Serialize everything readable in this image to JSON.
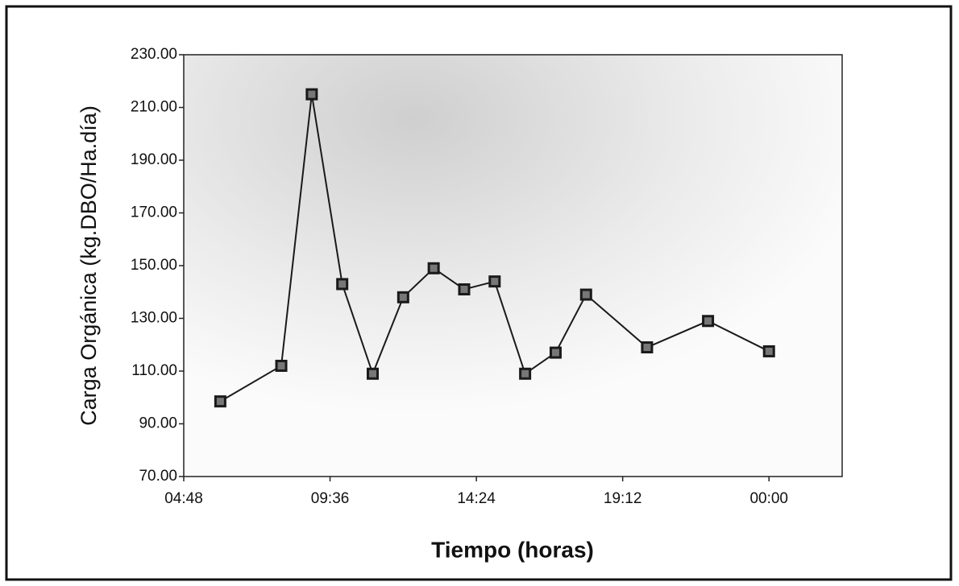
{
  "chart_data": {
    "type": "line",
    "x_label": "Tiempo (horas)",
    "y_label": "Carga Orgánica (kg.DBO/Ha.día)",
    "x": [
      6,
      8,
      9,
      10,
      11,
      12,
      13,
      14,
      15,
      16,
      17,
      18,
      20,
      22,
      24
    ],
    "values": [
      98.5,
      112,
      215,
      143,
      109,
      138,
      149,
      141,
      144,
      109,
      117,
      139,
      119,
      129,
      117.5
    ],
    "color": "#1a1a1a",
    "xlim": [
      4.8,
      26.4
    ],
    "xticks": [
      {
        "value": 4.8,
        "label": "04:48"
      },
      {
        "value": 9.6,
        "label": "09:36"
      },
      {
        "value": 14.4,
        "label": "14:24"
      },
      {
        "value": 19.2,
        "label": "19:12"
      },
      {
        "value": 24,
        "label": "00:00"
      }
    ],
    "ylim": [
      70,
      230
    ],
    "yticks": [
      {
        "value": 70,
        "label": "70.00"
      },
      {
        "value": 90,
        "label": "90.00"
      },
      {
        "value": 110,
        "label": "110.00"
      },
      {
        "value": 130,
        "label": "130.00"
      },
      {
        "value": 150,
        "label": "150.00"
      },
      {
        "value": 170,
        "label": "170.00"
      },
      {
        "value": 190,
        "label": "190.00"
      },
      {
        "value": 210,
        "label": "210.00"
      },
      {
        "value": 230,
        "label": "230.00"
      }
    ],
    "grid": false
  }
}
